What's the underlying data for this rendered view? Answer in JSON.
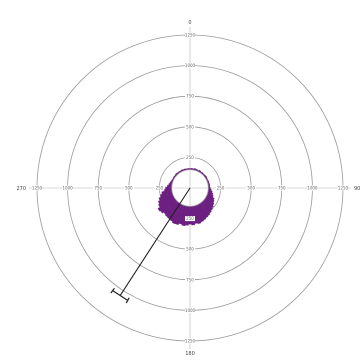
{
  "chart_data": {
    "type": "circular-histogram",
    "title": "",
    "direction_labels": [
      "0",
      "90",
      "180",
      "270"
    ],
    "radial_ticks": [
      "250",
      "500",
      "750",
      "1000",
      "1250"
    ],
    "radial_max": 1250,
    "inner_circle_value": 150,
    "bar_color": "#6b1e80",
    "bin_width_deg": 5,
    "bins": [
      {
        "angle": 0,
        "value": 8
      },
      {
        "angle": 5,
        "value": 10
      },
      {
        "angle": 10,
        "value": 9
      },
      {
        "angle": 15,
        "value": 12
      },
      {
        "angle": 20,
        "value": 10
      },
      {
        "angle": 25,
        "value": 8
      },
      {
        "angle": 30,
        "value": 12
      },
      {
        "angle": 35,
        "value": 9
      },
      {
        "angle": 40,
        "value": 10
      },
      {
        "angle": 45,
        "value": 8
      },
      {
        "angle": 50,
        "value": 10
      },
      {
        "angle": 55,
        "value": 12
      },
      {
        "angle": 60,
        "value": 9
      },
      {
        "angle": 65,
        "value": 8
      },
      {
        "angle": 70,
        "value": 10
      },
      {
        "angle": 75,
        "value": 9
      },
      {
        "angle": 80,
        "value": 12
      },
      {
        "angle": 85,
        "value": 10
      },
      {
        "angle": 90,
        "value": 14
      },
      {
        "angle": 95,
        "value": 20
      },
      {
        "angle": 100,
        "value": 28
      },
      {
        "angle": 105,
        "value": 35
      },
      {
        "angle": 110,
        "value": 42
      },
      {
        "angle": 115,
        "value": 55
      },
      {
        "angle": 120,
        "value": 62
      },
      {
        "angle": 125,
        "value": 70
      },
      {
        "angle": 130,
        "value": 78
      },
      {
        "angle": 135,
        "value": 85
      },
      {
        "angle": 140,
        "value": 92
      },
      {
        "angle": 145,
        "value": 100
      },
      {
        "angle": 150,
        "value": 105
      },
      {
        "angle": 155,
        "value": 112
      },
      {
        "angle": 160,
        "value": 118
      },
      {
        "angle": 165,
        "value": 125
      },
      {
        "angle": 170,
        "value": 120
      },
      {
        "angle": 175,
        "value": 128
      },
      {
        "angle": 180,
        "value": 122
      },
      {
        "angle": 185,
        "value": 130
      },
      {
        "angle": 190,
        "value": 135
      },
      {
        "angle": 195,
        "value": 128
      },
      {
        "angle": 200,
        "value": 138
      },
      {
        "angle": 205,
        "value": 140
      },
      {
        "angle": 210,
        "value": 132
      },
      {
        "angle": 215,
        "value": 128
      },
      {
        "angle": 220,
        "value": 125
      },
      {
        "angle": 225,
        "value": 120
      },
      {
        "angle": 230,
        "value": 130
      },
      {
        "angle": 235,
        "value": 135
      },
      {
        "angle": 240,
        "value": 118
      },
      {
        "angle": 245,
        "value": 110
      },
      {
        "angle": 250,
        "value": 98
      },
      {
        "angle": 255,
        "value": 82
      },
      {
        "angle": 260,
        "value": 70
      },
      {
        "angle": 265,
        "value": 55
      },
      {
        "angle": 270,
        "value": 42
      },
      {
        "angle": 275,
        "value": 30
      },
      {
        "angle": 280,
        "value": 22
      },
      {
        "angle": 285,
        "value": 16
      },
      {
        "angle": 290,
        "value": 12
      },
      {
        "angle": 295,
        "value": 9
      },
      {
        "angle": 300,
        "value": 8
      },
      {
        "angle": 305,
        "value": 10
      },
      {
        "angle": 310,
        "value": 8
      },
      {
        "angle": 315,
        "value": 12
      },
      {
        "angle": 320,
        "value": 9
      },
      {
        "angle": 325,
        "value": 10
      },
      {
        "angle": 330,
        "value": 8
      },
      {
        "angle": 335,
        "value": 11
      },
      {
        "angle": 340,
        "value": 9
      },
      {
        "angle": 345,
        "value": 10
      },
      {
        "angle": 350,
        "value": 8
      },
      {
        "angle": 355,
        "value": 9
      }
    ],
    "mean_vector": {
      "angle_deg": 213,
      "length": 1050
    },
    "confidence_interval": {
      "lower_deg": 209,
      "upper_deg": 217
    },
    "grid": true,
    "legend": "none"
  }
}
